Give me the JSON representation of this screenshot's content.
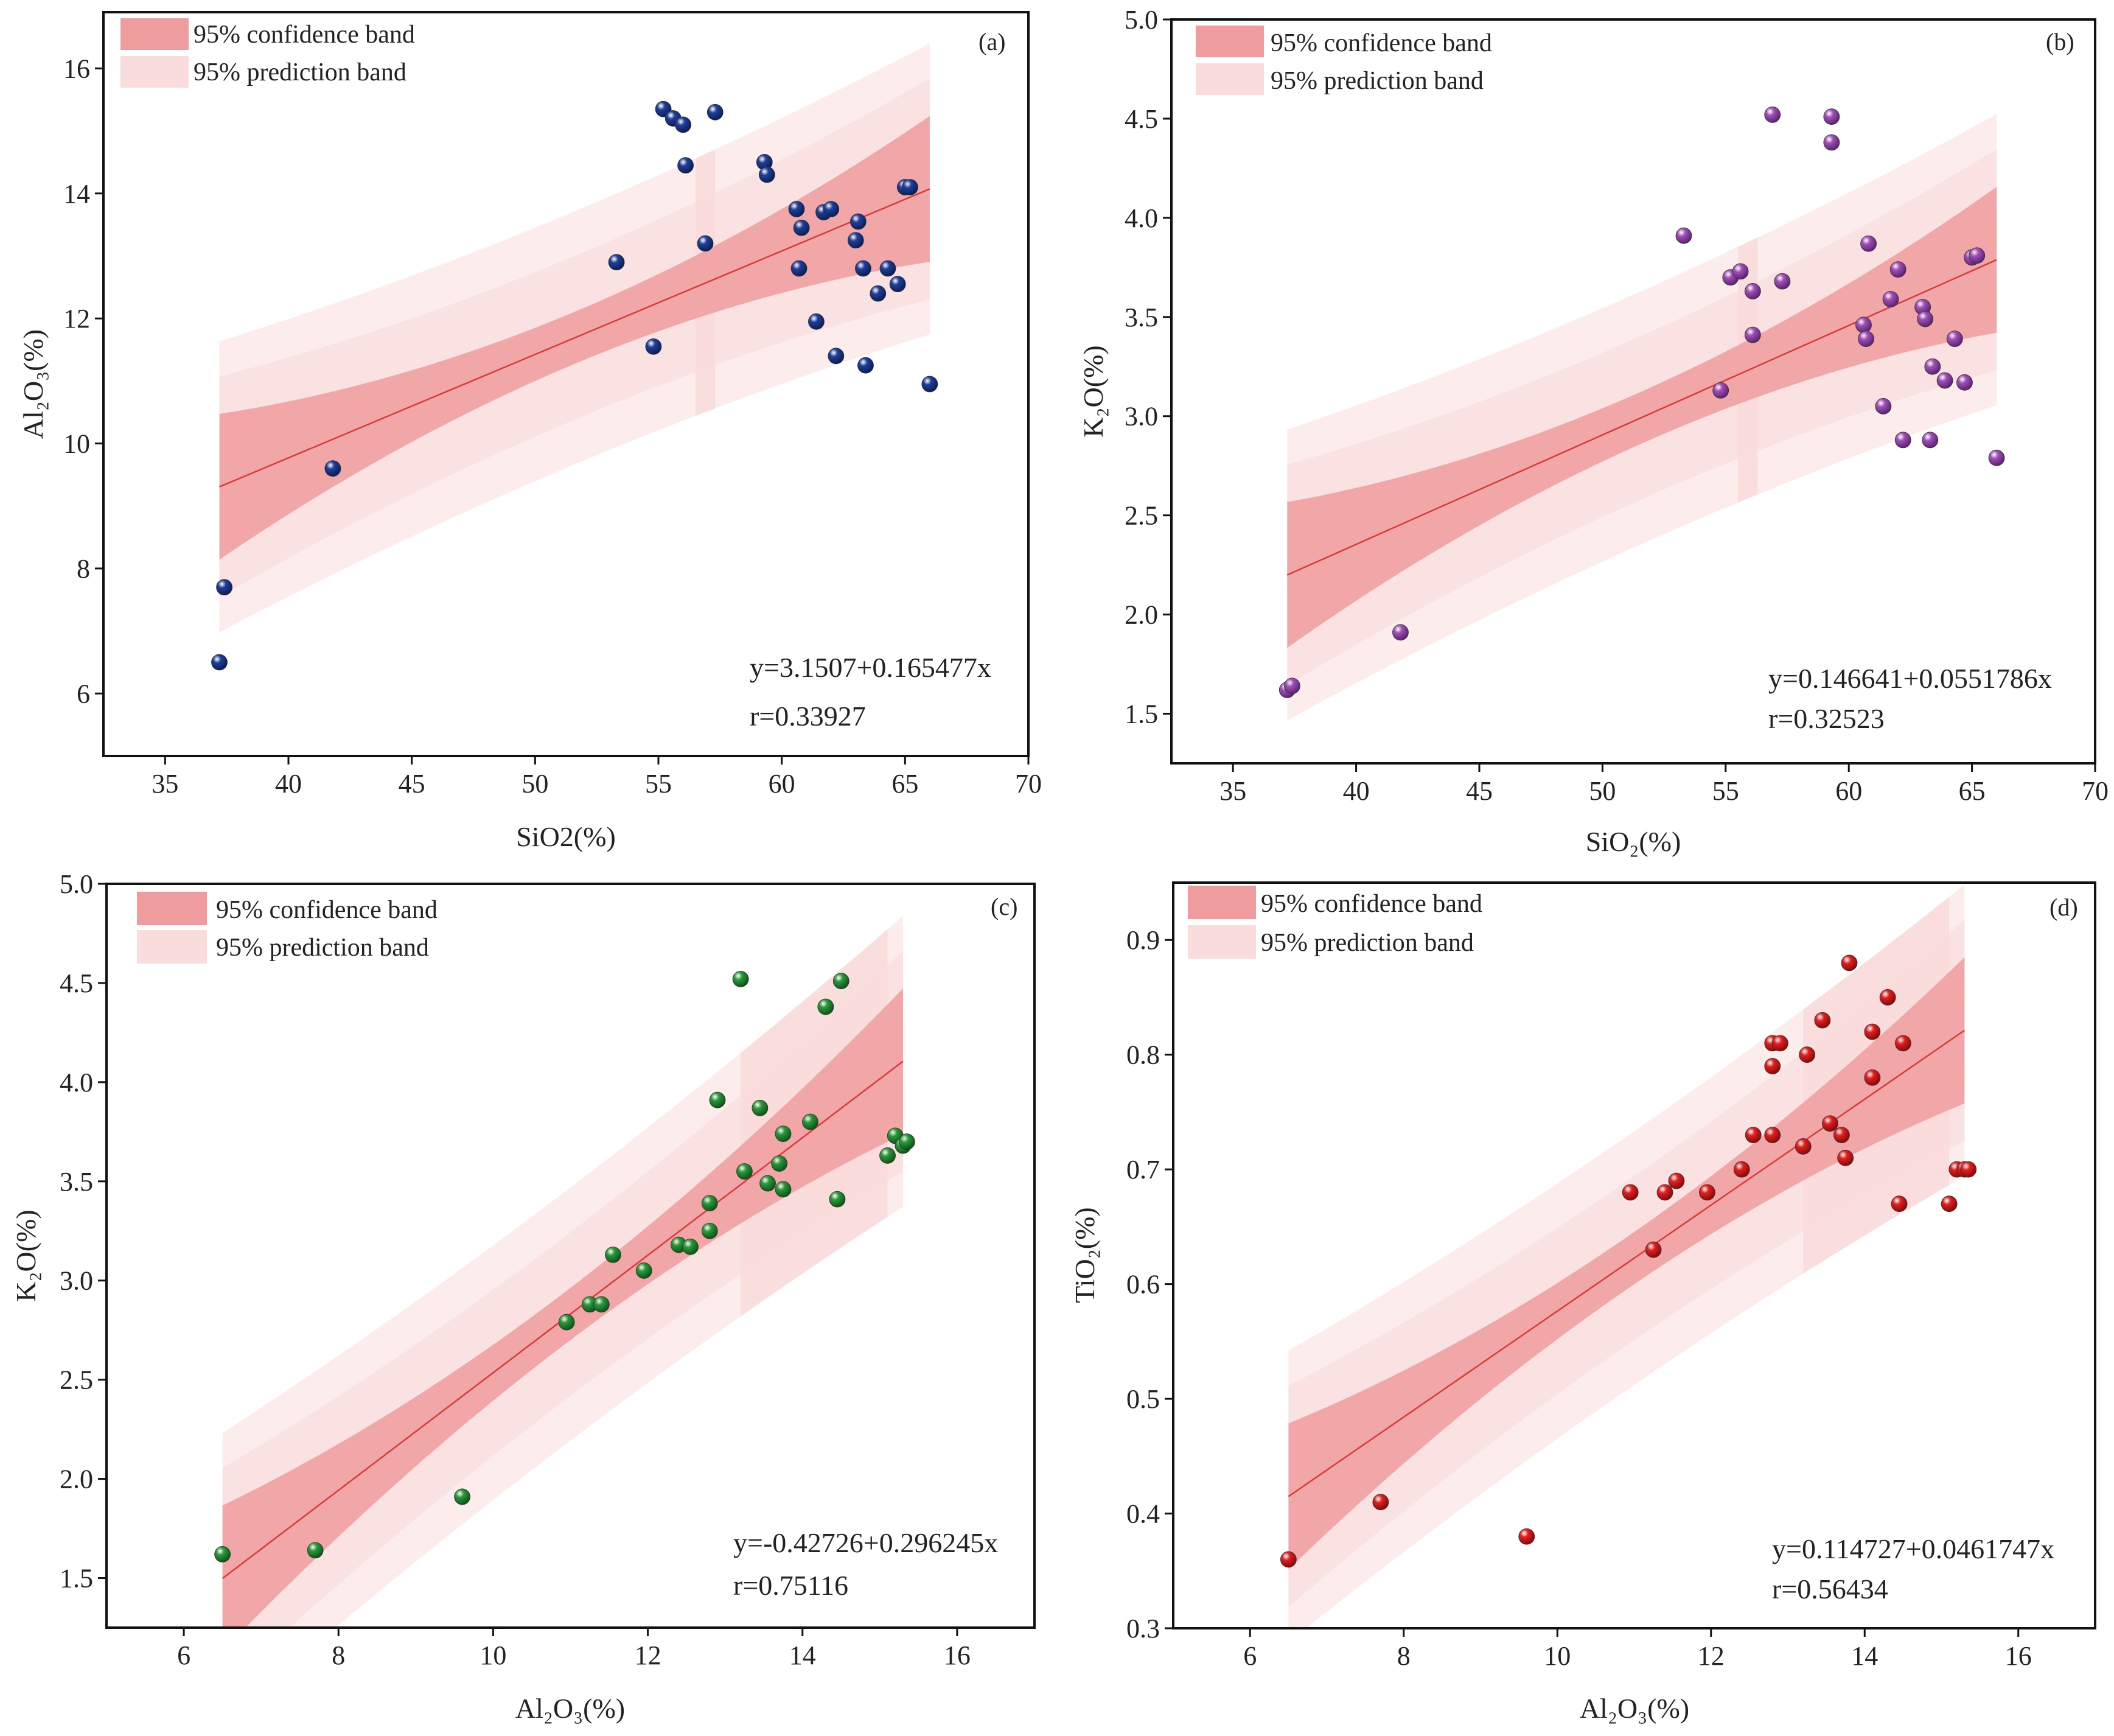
{
  "legend": {
    "confidence_label": "95% confidence band",
    "prediction_label": "95% prediction band"
  },
  "colors": {
    "confidence_band": "#ee9c9e",
    "prediction_band": "#fadcdc",
    "fit_line": "#d93a3a",
    "panel_a_points": "#1f3f99",
    "panel_b_points": "#a050b8",
    "panel_c_points": "#2a9a3a",
    "panel_d_points": "#e02020"
  },
  "chart_data": [
    {
      "type": "scatter",
      "panel": "(a)",
      "xlabel": "SiO2(%)",
      "ylabel": "Al₂O₃(%)",
      "xlim": [
        32.5,
        70
      ],
      "ylim": [
        5,
        16.9
      ],
      "xticks": [
        35,
        40,
        45,
        50,
        55,
        60,
        65,
        70
      ],
      "xtick_labels": [
        "35",
        "40",
        "45",
        "50",
        "55",
        "60",
        "65",
        "70"
      ],
      "yticks": [
        6,
        8,
        10,
        12,
        14,
        16
      ],
      "ytick_labels": [
        "6",
        "8",
        "10",
        "12",
        "14",
        "16"
      ],
      "equation": "y=3.1507+0.165477x",
      "r": "r=0.33927",
      "fit": {
        "intercept": 3.1507,
        "slope": 0.165477,
        "x_range": [
          37.2,
          66
        ]
      },
      "points": [
        [
          37.2,
          6.5
        ],
        [
          37.4,
          7.7
        ],
        [
          41.8,
          9.6
        ],
        [
          53.3,
          12.9
        ],
        [
          54.8,
          11.55
        ],
        [
          55.2,
          15.35
        ],
        [
          55.6,
          15.2
        ],
        [
          56.0,
          15.1
        ],
        [
          56.1,
          14.45
        ],
        [
          56.9,
          13.2
        ],
        [
          57.3,
          15.3
        ],
        [
          59.3,
          14.5
        ],
        [
          59.4,
          14.3
        ],
        [
          60.6,
          13.75
        ],
        [
          60.7,
          12.8
        ],
        [
          60.8,
          13.45
        ],
        [
          61.4,
          11.95
        ],
        [
          61.7,
          13.7
        ],
        [
          62.0,
          13.75
        ],
        [
          62.2,
          11.4
        ],
        [
          63.0,
          13.25
        ],
        [
          63.1,
          13.55
        ],
        [
          63.3,
          12.8
        ],
        [
          63.4,
          11.25
        ],
        [
          63.9,
          12.4
        ],
        [
          64.3,
          12.8
        ],
        [
          64.7,
          12.55
        ],
        [
          65.0,
          14.1
        ],
        [
          65.2,
          14.1
        ],
        [
          66.0,
          10.95
        ]
      ]
    },
    {
      "type": "scatter",
      "panel": "(b)",
      "xlabel": "SiO₂(%)",
      "ylabel": "K₂O(%)",
      "xlim": [
        32.5,
        70
      ],
      "ylim": [
        1.25,
        5.0
      ],
      "xticks": [
        35,
        40,
        45,
        50,
        55,
        60,
        65,
        70
      ],
      "xtick_labels": [
        "35",
        "40",
        "45",
        "50",
        "55",
        "60",
        "65",
        "70"
      ],
      "yticks": [
        1.5,
        2.0,
        2.5,
        3.0,
        3.5,
        4.0,
        4.5,
        5.0
      ],
      "ytick_labels": [
        "1.5",
        "2.0",
        "2.5",
        "3.0",
        "3.5",
        "4.0",
        "4.5",
        "5.0"
      ],
      "equation": "y=0.146641+0.0551786x",
      "r": "r=0.32523",
      "fit": {
        "intercept": 0.146641,
        "slope": 0.0551786,
        "x_range": [
          37.2,
          66
        ]
      },
      "points": [
        [
          37.2,
          1.62
        ],
        [
          37.4,
          1.64
        ],
        [
          41.8,
          1.91
        ],
        [
          53.3,
          3.91
        ],
        [
          54.8,
          3.13
        ],
        [
          55.2,
          3.7
        ],
        [
          55.6,
          3.73
        ],
        [
          56.1,
          3.63
        ],
        [
          56.1,
          3.41
        ],
        [
          56.9,
          4.52
        ],
        [
          57.3,
          3.68
        ],
        [
          59.3,
          4.51
        ],
        [
          59.3,
          4.38
        ],
        [
          60.6,
          3.46
        ],
        [
          60.7,
          3.39
        ],
        [
          60.8,
          3.87
        ],
        [
          61.4,
          3.05
        ],
        [
          61.7,
          3.59
        ],
        [
          62.0,
          3.74
        ],
        [
          62.2,
          2.88
        ],
        [
          63.0,
          3.55
        ],
        [
          63.1,
          3.49
        ],
        [
          63.3,
          2.88
        ],
        [
          63.4,
          3.25
        ],
        [
          63.9,
          3.18
        ],
        [
          64.3,
          3.39
        ],
        [
          64.7,
          3.17
        ],
        [
          65.0,
          3.8
        ],
        [
          65.2,
          3.81
        ],
        [
          66.0,
          2.79
        ]
      ]
    },
    {
      "type": "scatter",
      "panel": "(c)",
      "xlabel": "Al₂O₃(%)",
      "ylabel": "K₂O(%)",
      "xlim": [
        5,
        17
      ],
      "ylim": [
        1.25,
        5.0
      ],
      "xticks": [
        6,
        8,
        10,
        12,
        14,
        16
      ],
      "xtick_labels": [
        "6",
        "8",
        "10",
        "12",
        "14",
        "16"
      ],
      "yticks": [
        1.5,
        2.0,
        2.5,
        3.0,
        3.5,
        4.0,
        4.5,
        5.0
      ],
      "ytick_labels": [
        "1.5",
        "2.0",
        "2.5",
        "3.0",
        "3.5",
        "4.0",
        "4.5",
        "5.0"
      ],
      "equation": "y=-0.42726+0.296245x",
      "r": "r=0.75116",
      "fit": {
        "intercept": -0.42726,
        "slope": 0.296245,
        "x_range": [
          6.5,
          15.3
        ]
      },
      "points": [
        [
          6.5,
          1.62
        ],
        [
          7.7,
          1.64
        ],
        [
          9.6,
          1.91
        ],
        [
          10.95,
          2.79
        ],
        [
          11.25,
          2.88
        ],
        [
          11.4,
          2.88
        ],
        [
          11.55,
          3.13
        ],
        [
          11.95,
          3.05
        ],
        [
          12.4,
          3.18
        ],
        [
          12.55,
          3.17
        ],
        [
          12.8,
          3.25
        ],
        [
          12.8,
          3.39
        ],
        [
          12.9,
          3.91
        ],
        [
          13.2,
          4.52
        ],
        [
          13.25,
          3.55
        ],
        [
          13.45,
          3.87
        ],
        [
          13.55,
          3.49
        ],
        [
          13.7,
          3.59
        ],
        [
          13.75,
          3.46
        ],
        [
          13.75,
          3.74
        ],
        [
          14.1,
          3.8
        ],
        [
          14.3,
          4.38
        ],
        [
          14.45,
          3.41
        ],
        [
          14.5,
          4.51
        ],
        [
          15.1,
          3.63
        ],
        [
          15.2,
          3.73
        ],
        [
          15.3,
          3.68
        ],
        [
          15.35,
          3.7
        ]
      ]
    },
    {
      "type": "scatter",
      "panel": "(d)",
      "xlabel": "Al₂O₃(%)",
      "ylabel": "TiO₂(%)",
      "xlim": [
        5,
        17
      ],
      "ylim": [
        0.3,
        0.95
      ],
      "xticks": [
        6,
        8,
        10,
        12,
        14,
        16
      ],
      "xtick_labels": [
        "6",
        "8",
        "10",
        "12",
        "14",
        "16"
      ],
      "yticks": [
        0.3,
        0.4,
        0.5,
        0.6,
        0.7,
        0.8,
        0.9
      ],
      "ytick_labels": [
        "0.3",
        "0.4",
        "0.5",
        "0.6",
        "0.7",
        "0.8",
        "0.9"
      ],
      "equation": "y=0.114727+0.0461747x",
      "r": "r=0.56434",
      "fit": {
        "intercept": 0.114727,
        "slope": 0.0461747,
        "x_range": [
          6.5,
          15.3
        ]
      },
      "points": [
        [
          6.5,
          0.36
        ],
        [
          7.7,
          0.41
        ],
        [
          9.6,
          0.38
        ],
        [
          10.95,
          0.68
        ],
        [
          11.25,
          0.63
        ],
        [
          11.4,
          0.68
        ],
        [
          11.55,
          0.69
        ],
        [
          11.95,
          0.68
        ],
        [
          12.4,
          0.7
        ],
        [
          12.55,
          0.73
        ],
        [
          12.8,
          0.73
        ],
        [
          12.8,
          0.79
        ],
        [
          12.8,
          0.81
        ],
        [
          12.9,
          0.81
        ],
        [
          13.2,
          0.72
        ],
        [
          13.25,
          0.8
        ],
        [
          13.45,
          0.83
        ],
        [
          13.55,
          0.74
        ],
        [
          13.7,
          0.73
        ],
        [
          13.75,
          0.71
        ],
        [
          13.8,
          0.88
        ],
        [
          14.1,
          0.78
        ],
        [
          14.1,
          0.82
        ],
        [
          14.3,
          0.85
        ],
        [
          14.45,
          0.67
        ],
        [
          14.5,
          0.81
        ],
        [
          15.1,
          0.67
        ],
        [
          15.2,
          0.7
        ],
        [
          15.3,
          0.7
        ],
        [
          15.35,
          0.7
        ]
      ]
    }
  ]
}
